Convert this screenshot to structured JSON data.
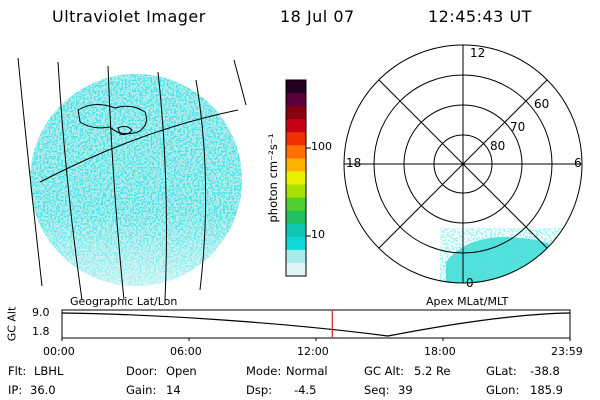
{
  "header": {
    "title": "Ultraviolet Imager",
    "date": "18 Jul 07",
    "time": "12:45:43 UT"
  },
  "colorbar": {
    "unit_label": "photon cm⁻²s⁻¹",
    "ticks": [
      {
        "label": "100",
        "value": 100
      },
      {
        "label": "10",
        "value": 10
      }
    ],
    "colors": [
      "#220022",
      "#5a003a",
      "#8a0010",
      "#c8001a",
      "#f03000",
      "#ff7000",
      "#ffb000",
      "#e8f000",
      "#a8e000",
      "#50d030",
      "#20c060",
      "#10c8b0",
      "#10d8d8",
      "#a8ecec",
      "#e0f4f4"
    ]
  },
  "polar_plot": {
    "lat_labels": [
      "80",
      "70",
      "60"
    ],
    "mlt_labels": {
      "top": "12",
      "left": "18",
      "right": "6",
      "bottom": "0"
    },
    "colors": {
      "emission": "#58e0d8",
      "grid": "#000000"
    }
  },
  "projection_labels": {
    "left": "Geographic Lat/Lon",
    "right": "Apex  MLat/MLT"
  },
  "altitude_plot": {
    "ylabel": "GC Alt",
    "yticks": [
      "9.0",
      "1.8"
    ],
    "xticks": [
      "00:00",
      "06:00",
      "12:00",
      "18:00",
      "23:59"
    ],
    "marker_time_hours": 12.76,
    "marker_color": "#cc2020"
  },
  "info": {
    "row1": [
      {
        "label": "Flt:",
        "value": "LBHL"
      },
      {
        "label": "Door:",
        "value": "Open"
      },
      {
        "label": "Mode:",
        "value": "Normal"
      },
      {
        "label": "GC Alt:",
        "value": "5.2 Re"
      },
      {
        "label": "GLat:",
        "value": "-38.8"
      }
    ],
    "row2": [
      {
        "label": "IP:",
        "value": "36.0"
      },
      {
        "label": "Gain:",
        "value": "14"
      },
      {
        "label": "Dsp:",
        "value": "-4.5"
      },
      {
        "label": "Seq:",
        "value": "39"
      },
      {
        "label": "GLon:",
        "value": "185.9"
      }
    ]
  }
}
